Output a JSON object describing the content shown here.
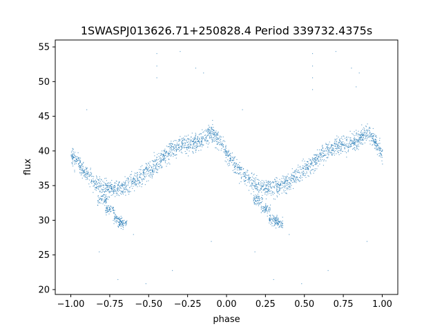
{
  "chart_data": {
    "type": "scatter",
    "title": "1SWASPJ013626.71+250828.4 Period 339732.4375s",
    "xlabel": "phase",
    "ylabel": "flux",
    "xlim": [
      -1.1,
      1.1
    ],
    "ylim": [
      19.3,
      56.0
    ],
    "x_ticks": [
      -1.0,
      -0.75,
      -0.5,
      -0.25,
      0.0,
      0.25,
      0.5,
      0.75,
      1.0
    ],
    "x_tick_labels": [
      "−1.00",
      "−0.75",
      "−0.50",
      "−0.25",
      "0.00",
      "0.25",
      "0.50",
      "0.75",
      "1.00"
    ],
    "y_ticks": [
      20,
      25,
      30,
      35,
      40,
      45,
      50,
      55
    ],
    "y_tick_labels": [
      "20",
      "25",
      "30",
      "35",
      "40",
      "45",
      "50",
      "55"
    ],
    "grid": false,
    "marker_color": "#1f77b4",
    "trend_phase": [
      0.0,
      0.05,
      0.1,
      0.15,
      0.2,
      0.25,
      0.3,
      0.35,
      0.4,
      0.45,
      0.5,
      0.55,
      0.6,
      0.65,
      0.7,
      0.75,
      0.8,
      0.85,
      0.9,
      0.95,
      1.0
    ],
    "trend_flux": [
      39.5,
      38.2,
      36.8,
      35.5,
      34.9,
      34.8,
      34.6,
      35.0,
      35.6,
      36.4,
      37.4,
      38.3,
      39.3,
      40.2,
      40.9,
      41.0,
      41.2,
      41.8,
      42.8,
      41.6,
      39.6
    ],
    "trend_scatter": 1.1,
    "low_branch": [
      {
        "phase": 0.2,
        "flux": 33.0
      },
      {
        "phase": 0.25,
        "flux": 31.6
      },
      {
        "phase": 0.3,
        "flux": 30.2
      },
      {
        "phase": 0.33,
        "flux": 29.6
      }
    ],
    "spike_points": [
      {
        "phase": 0.55,
        "flux": 54.1
      },
      {
        "phase": 0.55,
        "flux": 52.3
      },
      {
        "phase": 0.55,
        "flux": 50.6
      },
      {
        "phase": 0.55,
        "flux": 48.9
      },
      {
        "phase": 0.8,
        "flux": 52.0
      },
      {
        "phase": 0.83,
        "flux": 49.3
      },
      {
        "phase": 0.85,
        "flux": 51.3
      },
      {
        "phase": -0.45,
        "flux": 54.1
      },
      {
        "phase": -0.45,
        "flux": 52.3
      },
      {
        "phase": -0.45,
        "flux": 50.6
      },
      {
        "phase": -0.2,
        "flux": 52.0
      },
      {
        "phase": -0.15,
        "flux": 51.3
      },
      {
        "phase": -0.3,
        "flux": 54.4
      },
      {
        "phase": 0.7,
        "flux": 54.4
      }
    ],
    "outlier_points": [
      {
        "phase": -0.7,
        "flux": 21.5
      },
      {
        "phase": -0.52,
        "flux": 20.9
      },
      {
        "phase": -0.82,
        "flux": 25.5
      },
      {
        "phase": 0.3,
        "flux": 21.5
      },
      {
        "phase": 0.48,
        "flux": 20.9
      },
      {
        "phase": 0.18,
        "flux": 25.5
      },
      {
        "phase": -0.6,
        "flux": 28.0
      },
      {
        "phase": 0.4,
        "flux": 28.0
      },
      {
        "phase": 0.9,
        "flux": 27.0
      },
      {
        "phase": -0.1,
        "flux": 27.0
      },
      {
        "phase": -0.35,
        "flux": 22.8
      },
      {
        "phase": 0.65,
        "flux": 22.8
      },
      {
        "phase": 0.1,
        "flux": 46.0
      },
      {
        "phase": -0.9,
        "flux": 46.0
      }
    ]
  }
}
